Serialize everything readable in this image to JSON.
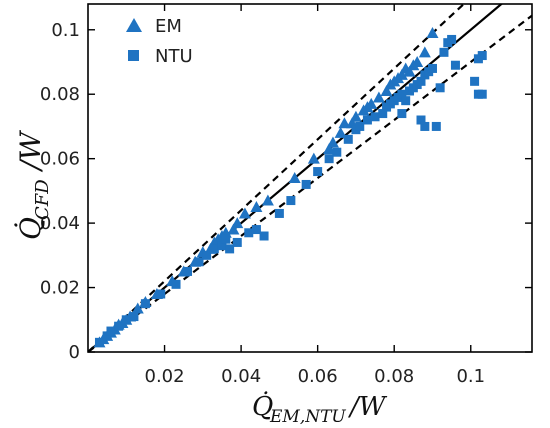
{
  "chart_data": {
    "type": "scatter",
    "xlabel_main": "Q̇",
    "xlabel_sub": "EM,NTU",
    "xlabel_tail": "/W",
    "ylabel_main": "Q̇",
    "ylabel_sub": "CFD",
    "ylabel_tail": "/W",
    "xlim": [
      0,
      0.116
    ],
    "ylim": [
      0,
      0.108
    ],
    "xticks": [
      0.02,
      0.04,
      0.06,
      0.08,
      0.1
    ],
    "xtick_labels": [
      "0.02",
      "0.04",
      "0.06",
      "0.08",
      "0.1"
    ],
    "yticks": [
      0,
      0.02,
      0.04,
      0.06,
      0.08,
      0.1
    ],
    "ytick_labels": [
      "0",
      "0.02",
      "0.04",
      "0.06",
      "0.08",
      "0.1"
    ],
    "grid": false,
    "legend_position": "top-left",
    "colors": {
      "markers": "#1f73c2",
      "lines": "#000000"
    },
    "reference_lines": [
      {
        "style": "solid",
        "slope": 1.0
      },
      {
        "style": "dashed",
        "slope": 1.1
      },
      {
        "style": "dashed",
        "slope": 0.9
      }
    ],
    "series": [
      {
        "name": "EM",
        "marker": "triangle",
        "points": [
          [
            0.003,
            0.003
          ],
          [
            0.004,
            0.004
          ],
          [
            0.005,
            0.005
          ],
          [
            0.006,
            0.006
          ],
          [
            0.007,
            0.007
          ],
          [
            0.008,
            0.0085
          ],
          [
            0.009,
            0.009
          ],
          [
            0.01,
            0.01
          ],
          [
            0.011,
            0.011
          ],
          [
            0.013,
            0.0135
          ],
          [
            0.015,
            0.0155
          ],
          [
            0.018,
            0.018
          ],
          [
            0.022,
            0.022
          ],
          [
            0.025,
            0.025
          ],
          [
            0.028,
            0.028
          ],
          [
            0.03,
            0.031
          ],
          [
            0.032,
            0.032
          ],
          [
            0.033,
            0.034
          ],
          [
            0.034,
            0.035
          ],
          [
            0.035,
            0.036
          ],
          [
            0.036,
            0.037
          ],
          [
            0.038,
            0.038
          ],
          [
            0.039,
            0.04
          ],
          [
            0.041,
            0.043
          ],
          [
            0.044,
            0.045
          ],
          [
            0.047,
            0.047
          ],
          [
            0.054,
            0.054
          ],
          [
            0.059,
            0.06
          ],
          [
            0.063,
            0.063
          ],
          [
            0.064,
            0.065
          ],
          [
            0.066,
            0.068
          ],
          [
            0.067,
            0.071
          ],
          [
            0.069,
            0.071
          ],
          [
            0.07,
            0.073
          ],
          [
            0.072,
            0.075
          ],
          [
            0.073,
            0.076
          ],
          [
            0.074,
            0.077
          ],
          [
            0.076,
            0.079
          ],
          [
            0.078,
            0.081
          ],
          [
            0.079,
            0.083
          ],
          [
            0.08,
            0.084
          ],
          [
            0.081,
            0.085
          ],
          [
            0.082,
            0.086
          ],
          [
            0.083,
            0.088
          ],
          [
            0.084,
            0.087
          ],
          [
            0.085,
            0.089
          ],
          [
            0.086,
            0.09
          ],
          [
            0.088,
            0.093
          ],
          [
            0.09,
            0.099
          ]
        ]
      },
      {
        "name": "NTU",
        "marker": "square",
        "points": [
          [
            0.003,
            0.003
          ],
          [
            0.005,
            0.005
          ],
          [
            0.006,
            0.0065
          ],
          [
            0.008,
            0.008
          ],
          [
            0.01,
            0.01
          ],
          [
            0.012,
            0.011
          ],
          [
            0.015,
            0.015
          ],
          [
            0.019,
            0.018
          ],
          [
            0.023,
            0.021
          ],
          [
            0.026,
            0.025
          ],
          [
            0.029,
            0.028
          ],
          [
            0.031,
            0.03
          ],
          [
            0.033,
            0.032
          ],
          [
            0.035,
            0.033
          ],
          [
            0.036,
            0.035
          ],
          [
            0.037,
            0.032
          ],
          [
            0.039,
            0.034
          ],
          [
            0.042,
            0.037
          ],
          [
            0.044,
            0.038
          ],
          [
            0.046,
            0.036
          ],
          [
            0.05,
            0.043
          ],
          [
            0.053,
            0.047
          ],
          [
            0.057,
            0.052
          ],
          [
            0.06,
            0.056
          ],
          [
            0.063,
            0.06
          ],
          [
            0.065,
            0.062
          ],
          [
            0.068,
            0.066
          ],
          [
            0.07,
            0.069
          ],
          [
            0.071,
            0.07
          ],
          [
            0.073,
            0.072
          ],
          [
            0.075,
            0.073
          ],
          [
            0.077,
            0.074
          ],
          [
            0.078,
            0.076
          ],
          [
            0.079,
            0.077
          ],
          [
            0.08,
            0.078
          ],
          [
            0.081,
            0.079
          ],
          [
            0.082,
            0.08
          ],
          [
            0.083,
            0.078
          ],
          [
            0.084,
            0.081
          ],
          [
            0.085,
            0.082
          ],
          [
            0.086,
            0.083
          ],
          [
            0.087,
            0.084
          ],
          [
            0.088,
            0.086
          ],
          [
            0.089,
            0.087
          ],
          [
            0.09,
            0.088
          ],
          [
            0.082,
            0.074
          ],
          [
            0.087,
            0.072
          ],
          [
            0.088,
            0.07
          ],
          [
            0.091,
            0.07
          ],
          [
            0.092,
            0.082
          ],
          [
            0.093,
            0.093
          ],
          [
            0.094,
            0.096
          ],
          [
            0.096,
            0.089
          ],
          [
            0.101,
            0.084
          ],
          [
            0.102,
            0.08
          ],
          [
            0.103,
            0.08
          ],
          [
            0.102,
            0.091
          ],
          [
            0.103,
            0.092
          ],
          [
            0.095,
            0.097
          ]
        ]
      }
    ]
  }
}
